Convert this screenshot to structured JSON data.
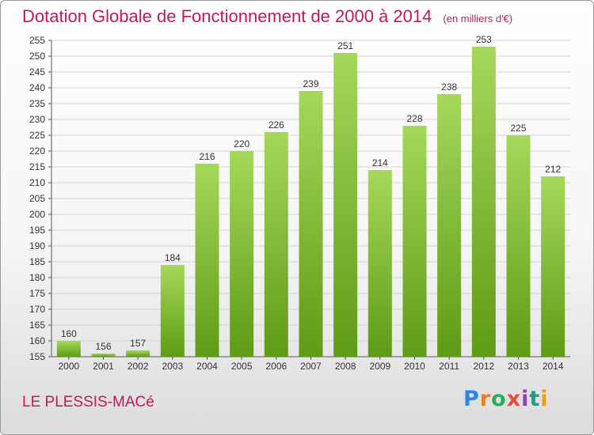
{
  "header": {
    "title": "Dotation Globale de Fonctionnement de 2000 à 2014",
    "unit": "(en milliers d'€)"
  },
  "footer": {
    "city": "LE PLESSIS-MACé",
    "logo_letters": [
      "P",
      "r",
      "o",
      "x",
      "i",
      "t",
      "i"
    ],
    "logo_colors": [
      "#2e86de",
      "#e67e22",
      "#27ae60",
      "#e74c3c",
      "#8e44ad",
      "#16a085",
      "#f39c12"
    ]
  },
  "colors": {
    "bar_top": "#a6d85b",
    "bar_bottom": "#5e9b16",
    "grid": "#d4d4d4",
    "axis": "#555555",
    "accent": "#c2185b"
  },
  "chart_data": {
    "type": "bar",
    "title": "Dotation Globale de Fonctionnement de 2000 à 2014",
    "xlabel": "",
    "ylabel": "",
    "categories": [
      "2000",
      "2001",
      "2002",
      "2003",
      "2004",
      "2005",
      "2006",
      "2007",
      "2008",
      "2009",
      "2010",
      "2011",
      "2012",
      "2013",
      "2014"
    ],
    "values": [
      160,
      156,
      157,
      184,
      216,
      220,
      226,
      239,
      251,
      214,
      228,
      238,
      253,
      225,
      212
    ],
    "ylim": [
      155,
      255
    ],
    "yticks": [
      155,
      160,
      165,
      170,
      175,
      180,
      185,
      190,
      195,
      200,
      205,
      210,
      215,
      220,
      225,
      230,
      235,
      240,
      245,
      250,
      255
    ],
    "grid": true,
    "legend": "none"
  }
}
